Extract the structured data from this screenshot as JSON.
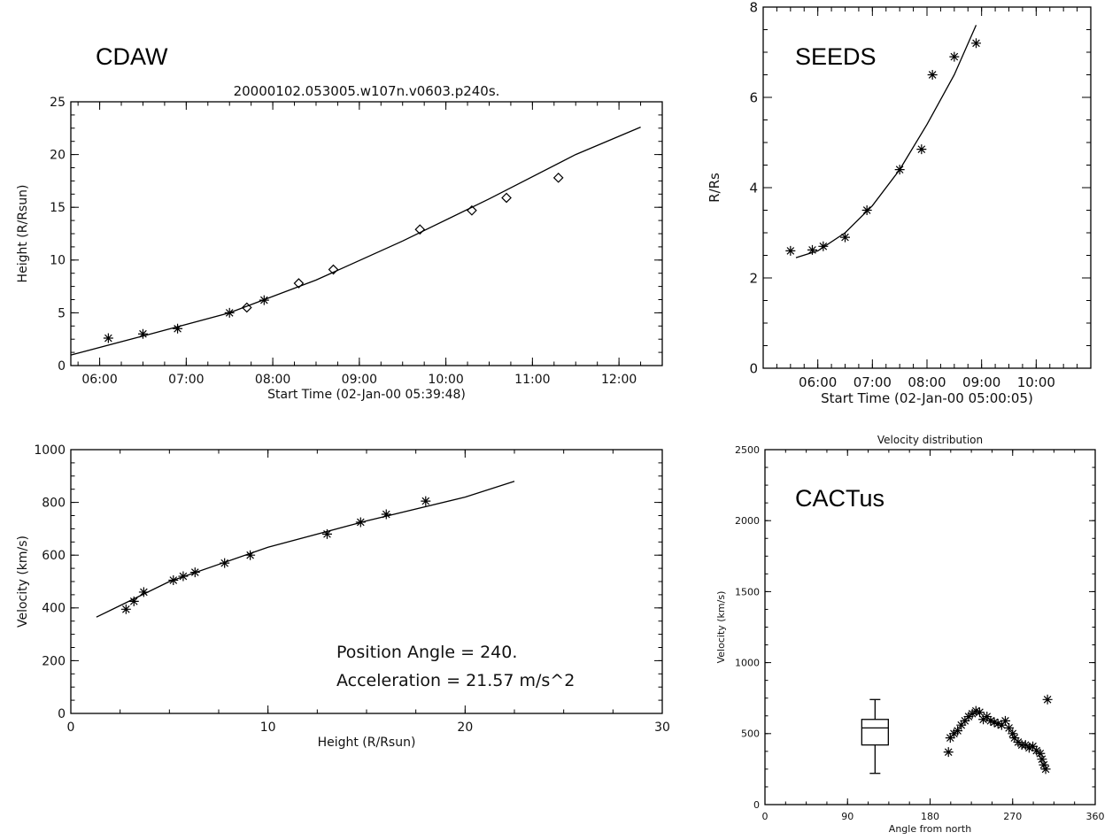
{
  "chart_data": [
    {
      "id": "cdaw-height",
      "type": "scatter",
      "source_label": "CDAW",
      "title": "20000102.053005.w107n.v0603.p240s.",
      "xlabel": "Start Time (02-Jan-00 05:39:48)",
      "ylabel": "Height (R/Rsun)",
      "xlim": [
        "05:40",
        "12:30"
      ],
      "ylim": [
        0,
        25
      ],
      "x_ticks": [
        "06:00",
        "07:00",
        "08:00",
        "09:00",
        "10:00",
        "11:00",
        "12:00"
      ],
      "y_ticks": [
        "0",
        "5",
        "10",
        "15",
        "20",
        "25"
      ],
      "series": [
        {
          "marker": "asterisk",
          "points": [
            [
              "06:06",
              2.6
            ],
            [
              "06:30",
              3.0
            ],
            [
              "06:54",
              3.5
            ],
            [
              "07:30",
              5.0
            ],
            [
              "07:54",
              6.2
            ]
          ]
        },
        {
          "marker": "diamond",
          "points": [
            [
              "07:42",
              5.5
            ],
            [
              "08:18",
              7.8
            ],
            [
              "08:42",
              9.1
            ],
            [
              "09:42",
              12.9
            ],
            [
              "10:18",
              14.7
            ],
            [
              "10:42",
              15.9
            ],
            [
              "11:18",
              17.8
            ]
          ]
        },
        {
          "type": "line",
          "points": [
            [
              "05:40",
              1.0
            ],
            [
              "06:30",
              2.8
            ],
            [
              "07:30",
              5.0
            ],
            [
              "08:30",
              8.1
            ],
            [
              "09:30",
              11.8
            ],
            [
              "10:30",
              15.8
            ],
            [
              "11:30",
              20.0
            ],
            [
              "12:15",
              22.6
            ]
          ]
        }
      ]
    },
    {
      "id": "seeds-height",
      "type": "scatter",
      "source_label": "SEEDS",
      "xlabel": "Start Time (02-Jan-00 05:00:05)",
      "ylabel": "R/Rs",
      "xlim": [
        "05:00",
        "11:00"
      ],
      "ylim": [
        0,
        8
      ],
      "x_ticks": [
        "06:00",
        "07:00",
        "08:00",
        "09:00",
        "10:00"
      ],
      "y_ticks": [
        "0",
        "2",
        "4",
        "6",
        "8"
      ],
      "series": [
        {
          "marker": "asterisk",
          "points": [
            [
              "05:30",
              2.6
            ],
            [
              "05:54",
              2.62
            ],
            [
              "06:06",
              2.7
            ],
            [
              "06:30",
              2.9
            ],
            [
              "06:54",
              3.5
            ],
            [
              "07:30",
              4.4
            ],
            [
              "07:54",
              4.85
            ],
            [
              "08:06",
              6.5
            ],
            [
              "08:30",
              6.9
            ],
            [
              "08:54",
              7.2
            ]
          ]
        },
        {
          "type": "line",
          "points": [
            [
              "05:36",
              2.45
            ],
            [
              "06:00",
              2.6
            ],
            [
              "06:30",
              3.0
            ],
            [
              "07:00",
              3.6
            ],
            [
              "07:30",
              4.4
            ],
            [
              "08:00",
              5.4
            ],
            [
              "08:30",
              6.5
            ],
            [
              "08:54",
              7.6
            ]
          ]
        }
      ]
    },
    {
      "id": "cdaw-velocity",
      "type": "scatter",
      "xlabel": "Height (R/Rsun)",
      "ylabel": "Velocity (km/s)",
      "xlim": [
        0,
        30
      ],
      "ylim": [
        0,
        1000
      ],
      "x_ticks": [
        "0",
        "10",
        "20",
        "30"
      ],
      "y_ticks": [
        "0",
        "200",
        "400",
        "600",
        "800",
        "1000"
      ],
      "annotations": [
        "Position Angle =  240.",
        "Acceleration =   21.57 m/s^2"
      ],
      "series": [
        {
          "marker": "asterisk",
          "points": [
            [
              2.8,
              395
            ],
            [
              3.2,
              425
            ],
            [
              3.7,
              460
            ],
            [
              5.2,
              505
            ],
            [
              5.7,
              520
            ],
            [
              6.3,
              535
            ],
            [
              7.8,
              570
            ],
            [
              9.1,
              600
            ],
            [
              13.0,
              680
            ],
            [
              14.7,
              725
            ],
            [
              16.0,
              755
            ],
            [
              18.0,
              805
            ]
          ]
        },
        {
          "type": "line",
          "points": [
            [
              1.3,
              365
            ],
            [
              5,
              500
            ],
            [
              10,
              630
            ],
            [
              15,
              730
            ],
            [
              20,
              820
            ],
            [
              22.5,
              880
            ]
          ]
        }
      ]
    },
    {
      "id": "cactus-velocity",
      "type": "scatter",
      "source_label": "CACTus",
      "title": "Velocity distribution",
      "xlabel": "Angle from north",
      "ylabel": "Velocity (km/s)",
      "xlim": [
        0,
        360
      ],
      "ylim": [
        0,
        2500
      ],
      "x_ticks": [
        "0",
        "90",
        "180",
        "270",
        "360"
      ],
      "y_ticks": [
        "0",
        "500",
        "1000",
        "1500",
        "2000",
        "2500"
      ],
      "boxplot": {
        "x": 120,
        "min": 220,
        "q1": 420,
        "median": 540,
        "q3": 600,
        "max": 740
      },
      "series": [
        {
          "marker": "asterisk",
          "points": [
            [
              200,
              370
            ],
            [
              202,
              470
            ],
            [
              206,
              500
            ],
            [
              210,
              520
            ],
            [
              214,
              560
            ],
            [
              218,
              590
            ],
            [
              222,
              620
            ],
            [
              226,
              640
            ],
            [
              230,
              660
            ],
            [
              234,
              650
            ],
            [
              238,
              600
            ],
            [
              242,
              620
            ],
            [
              246,
              590
            ],
            [
              250,
              580
            ],
            [
              254,
              570
            ],
            [
              258,
              560
            ],
            [
              262,
              590
            ],
            [
              266,
              540
            ],
            [
              270,
              500
            ],
            [
              272,
              470
            ],
            [
              276,
              440
            ],
            [
              280,
              420
            ],
            [
              284,
              420
            ],
            [
              288,
              400
            ],
            [
              292,
              410
            ],
            [
              296,
              380
            ],
            [
              300,
              360
            ],
            [
              302,
              320
            ],
            [
              304,
              280
            ],
            [
              306,
              250
            ],
            [
              308,
              740
            ]
          ]
        }
      ]
    }
  ]
}
